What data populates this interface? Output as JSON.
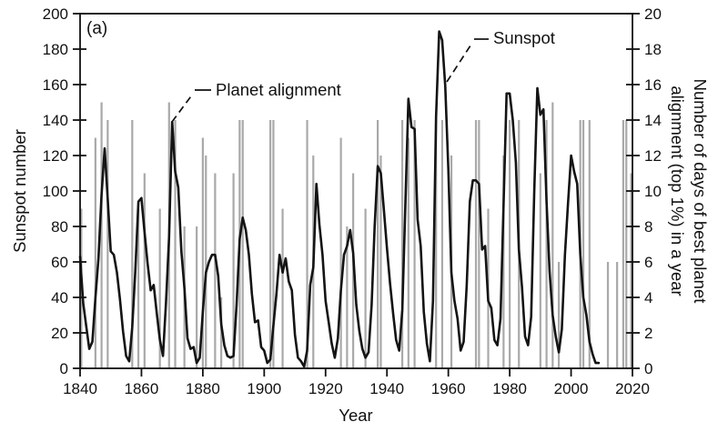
{
  "chart_data": {
    "type": "line",
    "panel_label": "(a)",
    "xlabel": "Year",
    "grid": false,
    "x_axis": {
      "min": 1840,
      "max": 2020,
      "ticks": [
        1840,
        1860,
        1880,
        1900,
        1920,
        1940,
        1960,
        1980,
        2000,
        2020
      ]
    },
    "left_axis": {
      "label": "Sunspot number",
      "min": 0,
      "max": 200,
      "ticks": [
        0,
        20,
        40,
        60,
        80,
        100,
        120,
        140,
        160,
        180,
        200
      ]
    },
    "right_axis": {
      "label_line1": "Number of days of best planet",
      "label_line2": "alignment (top 1%) in a year",
      "min": 0,
      "max": 20,
      "ticks": [
        0,
        2,
        4,
        6,
        8,
        10,
        12,
        14,
        16,
        18,
        20
      ]
    },
    "annotations": [
      {
        "text": "Planet alignment",
        "points_to": "gray spike near 1870"
      },
      {
        "text": "Sunspot",
        "points_to": "black curve peak near 1958"
      }
    ],
    "series": [
      {
        "name": "Sunspot",
        "type": "line",
        "axis": "left",
        "color": "#141414",
        "x_start": 1840,
        "x_step": 1,
        "values": [
          63,
          37,
          24,
          11,
          15,
          40,
          62,
          98,
          124,
          96,
          66,
          64,
          54,
          39,
          21,
          7,
          4,
          23,
          55,
          94,
          96,
          77,
          59,
          44,
          47,
          31,
          16,
          7,
          37,
          74,
          139,
          111,
          102,
          66,
          45,
          17,
          11,
          12,
          3,
          6,
          32,
          54,
          60,
          64,
          64,
          52,
          25,
          13,
          7,
          6,
          7,
          36,
          73,
          85,
          78,
          64,
          42,
          26,
          27,
          12,
          10,
          3,
          5,
          24,
          42,
          64,
          54,
          62,
          49,
          44,
          19,
          6,
          4,
          1,
          10,
          47,
          57,
          104,
          81,
          64,
          38,
          26,
          14,
          6,
          17,
          44,
          64,
          69,
          78,
          65,
          36,
          21,
          11,
          6,
          9,
          36,
          80,
          114,
          110,
          89,
          68,
          48,
          31,
          16,
          10,
          33,
          93,
          152,
          136,
          135,
          84,
          69,
          32,
          14,
          4,
          38,
          142,
          190,
          185,
          159,
          112,
          54,
          38,
          28,
          10,
          15,
          47,
          94,
          106,
          106,
          104,
          67,
          69,
          38,
          34,
          16,
          13,
          28,
          93,
          155,
          155,
          140,
          116,
          67,
          46,
          18,
          13,
          29,
          100,
          158,
          143,
          146,
          94,
          55,
          30,
          18,
          9,
          22,
          64,
          93,
          120,
          111,
          104,
          64,
          40,
          30,
          15,
          8,
          3,
          3
        ]
      },
      {
        "name": "Planet alignment",
        "type": "spike",
        "axis": "right",
        "color": "#a9a9a9",
        "points": [
          [
            1840,
            9
          ],
          [
            1845,
            13
          ],
          [
            1847,
            15
          ],
          [
            1849,
            14
          ],
          [
            1857,
            14
          ],
          [
            1859,
            9
          ],
          [
            1861,
            11
          ],
          [
            1866,
            9
          ],
          [
            1869,
            15
          ],
          [
            1871,
            14
          ],
          [
            1874,
            8
          ],
          [
            1878,
            8
          ],
          [
            1880,
            13
          ],
          [
            1881,
            12
          ],
          [
            1884,
            11
          ],
          [
            1886,
            4
          ],
          [
            1890,
            11
          ],
          [
            1892,
            14
          ],
          [
            1893,
            14
          ],
          [
            1902,
            14
          ],
          [
            1903,
            14
          ],
          [
            1906,
            9
          ],
          [
            1914,
            14
          ],
          [
            1916,
            12
          ],
          [
            1925,
            13
          ],
          [
            1927,
            8
          ],
          [
            1929,
            11
          ],
          [
            1933,
            9
          ],
          [
            1937,
            14
          ],
          [
            1938,
            12
          ],
          [
            1945,
            14
          ],
          [
            1947,
            13
          ],
          [
            1949,
            14
          ],
          [
            1956,
            14
          ],
          [
            1958,
            14
          ],
          [
            1961,
            12
          ],
          [
            1969,
            14
          ],
          [
            1970,
            14
          ],
          [
            1973,
            9
          ],
          [
            1978,
            12
          ],
          [
            1980,
            14
          ],
          [
            1983,
            14
          ],
          [
            1990,
            11
          ],
          [
            1992,
            14
          ],
          [
            1994,
            15
          ],
          [
            1996,
            6
          ],
          [
            2003,
            14
          ],
          [
            2004,
            14
          ],
          [
            2006,
            14
          ],
          [
            2012,
            6
          ],
          [
            2015,
            6
          ],
          [
            2017,
            14
          ],
          [
            2018,
            14
          ],
          [
            2020,
            11
          ]
        ]
      }
    ]
  }
}
